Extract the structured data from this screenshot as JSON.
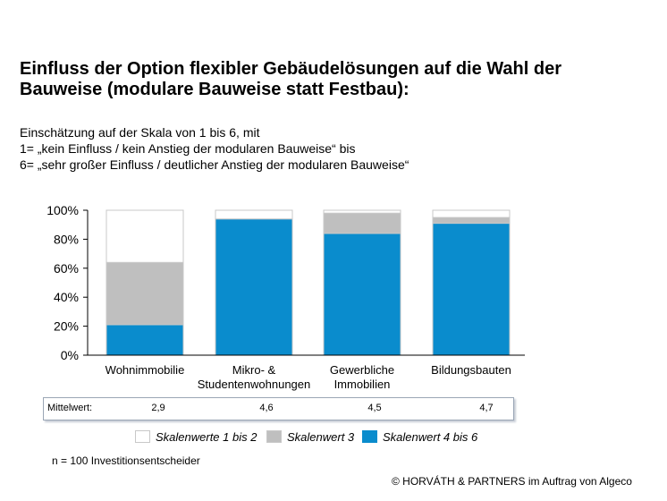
{
  "header": {
    "title_line1": "Einfluss der Option flexibler Gebäudelösungen auf die Wahl der",
    "title_line2": "Bauweise (modulare Bauweise statt Festbau):",
    "subtitle_lines": [
      "Einschätzung auf der Skala von 1 bis 6, mit",
      "1= „kein Einfluss / kein Anstieg der modularen Bauweise“ bis",
      "6= „sehr großer Einfluss / deutlicher Anstieg der modularen Bauweise“"
    ]
  },
  "chart_data": {
    "type": "bar",
    "stacked": true,
    "categories": [
      [
        "Wohnimmobilie"
      ],
      [
        "Mikro- &",
        "Studentenwohnungen"
      ],
      [
        "Gewerbliche",
        "Immobilien"
      ],
      [
        "Bildungsbauten"
      ]
    ],
    "series": [
      {
        "name": "Skalenwert 4 bis 6",
        "color": "#0a8ccd",
        "values": [
          21,
          94,
          84,
          91
        ]
      },
      {
        "name": "Skalenwert 3",
        "color": "#bfbfbf",
        "values": [
          43,
          0,
          14,
          4
        ]
      },
      {
        "name": "Skalenwerte 1 bis 2",
        "color": "#ffffff",
        "values": [
          36,
          6,
          2,
          5
        ]
      }
    ],
    "ylim": [
      0,
      100
    ],
    "yticks": [
      0,
      20,
      40,
      60,
      80,
      100
    ],
    "ytick_labels": [
      "0%",
      "20%",
      "40%",
      "60%",
      "80%",
      "100%"
    ],
    "grid": false,
    "legend_position": "bottom"
  },
  "mean_table": {
    "label": "Mittelwert:",
    "values": [
      "2,9",
      "4,6",
      "4,5",
      "4,7"
    ]
  },
  "legend": [
    {
      "label": "Skalenwerte 1 bis 2",
      "color": "#ffffff"
    },
    {
      "label": "Skalenwert 3",
      "color": "#bfbfbf"
    },
    {
      "label": "Skalenwert 4 bis 6",
      "color": "#0a8ccd"
    }
  ],
  "footer": {
    "note": "n = 100 Investitionsentscheider",
    "copyright": "© HORVÁTH & PARTNERS im Auftrag von Algeco"
  }
}
